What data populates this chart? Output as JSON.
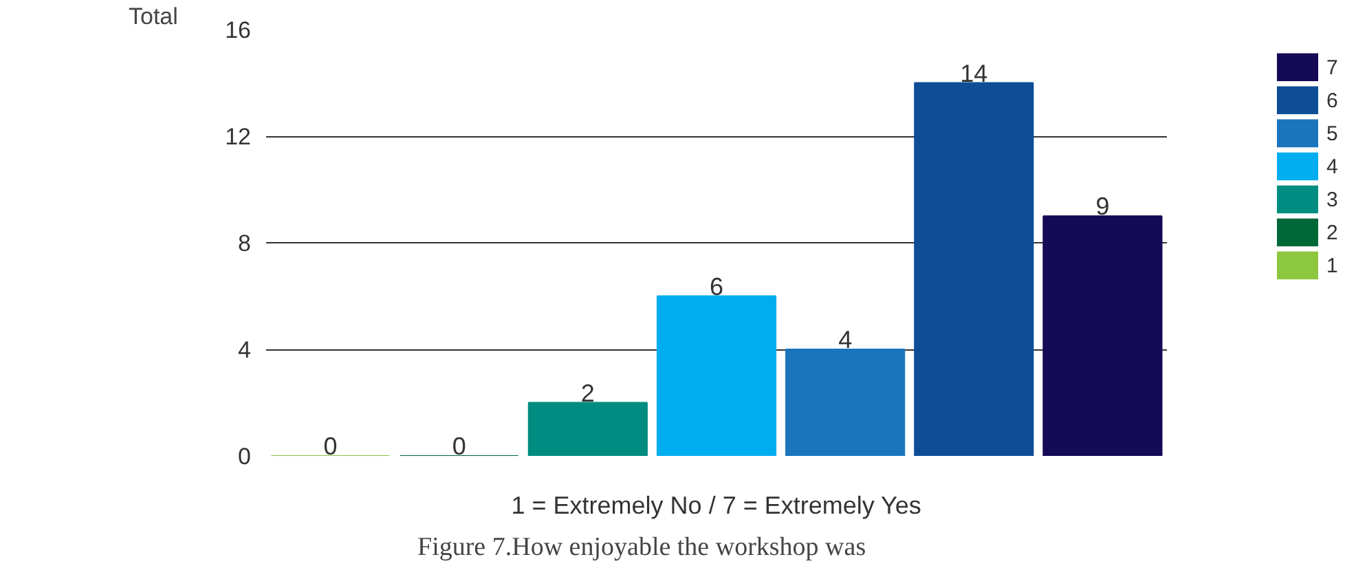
{
  "chart_data": {
    "type": "bar",
    "title": "Figure 7.How enjoyable the workshop was",
    "xlabel": "1 = Extremely No / 7 = Extremely Yes",
    "ylabel": "Total",
    "categories": [
      null,
      null,
      null,
      null,
      null,
      null,
      null
    ],
    "series": [
      {
        "name": "1",
        "color": "#8dc63f",
        "values": [
          0,
          null,
          null,
          null,
          null,
          null,
          null
        ]
      },
      {
        "name": "2",
        "color": "#006838",
        "values": [
          null,
          0,
          null,
          null,
          null,
          null,
          null
        ]
      },
      {
        "name": "3",
        "color": "#008c80",
        "values": [
          null,
          null,
          2,
          null,
          null,
          null,
          null
        ]
      },
      {
        "name": "4",
        "color": "#00aeef",
        "values": [
          null,
          null,
          null,
          6,
          null,
          null,
          null
        ]
      },
      {
        "name": "5",
        "color": "#1b75bc",
        "values": [
          null,
          null,
          null,
          null,
          4,
          null,
          null
        ]
      },
      {
        "name": "6",
        "color": "#0d4e96",
        "values": [
          null,
          null,
          null,
          null,
          null,
          14,
          null
        ]
      },
      {
        "name": "7",
        "color": "#140a56",
        "values": [
          null,
          null,
          null,
          null,
          null,
          null,
          9
        ]
      }
    ],
    "ylim": [
      0,
      16
    ],
    "yticks": [
      0,
      4,
      8,
      12,
      16
    ],
    "grid": "y",
    "legend": "right",
    "data_labels": true
  }
}
